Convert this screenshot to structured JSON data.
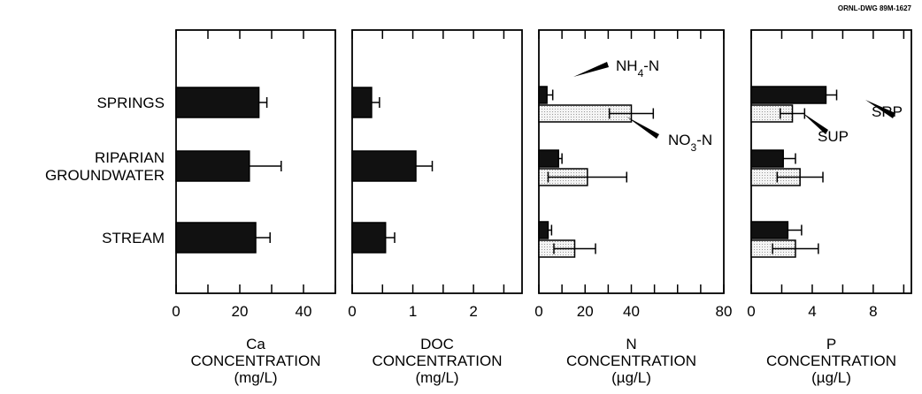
{
  "drawing_id": "ORNL-DWG 89M-1627",
  "categories": [
    "SPRINGS",
    "RIPARIAN\nGROUNDWATER",
    "STREAM"
  ],
  "colors": {
    "solid": "#111111",
    "stippled": "#f2f2f2",
    "frame": "#000000"
  },
  "chart_data": [
    {
      "type": "bar",
      "orientation": "horizontal",
      "categories": [
        "SPRINGS",
        "RIPARIAN GROUNDWATER",
        "STREAM"
      ],
      "xlim": [
        0,
        50
      ],
      "xticks": [
        0,
        20,
        40
      ],
      "xlabel": [
        "Ca",
        "CONCENTRATION",
        "(mg/L)"
      ],
      "series": [
        {
          "style": "solid",
          "values": [
            26,
            23,
            25
          ],
          "errors": [
            2.5,
            10,
            4.5
          ]
        }
      ]
    },
    {
      "type": "bar",
      "orientation": "horizontal",
      "categories": [
        "SPRINGS",
        "RIPARIAN GROUNDWATER",
        "STREAM"
      ],
      "xlim": [
        0,
        2.8
      ],
      "xticks": [
        0,
        1,
        2
      ],
      "xlabel": [
        "DOC",
        "CONCENTRATION",
        "(mg/L)"
      ],
      "series": [
        {
          "style": "solid",
          "values": [
            0.32,
            1.05,
            0.55
          ],
          "errors": [
            0.13,
            0.27,
            0.15
          ]
        }
      ]
    },
    {
      "type": "bar",
      "orientation": "horizontal",
      "categories": [
        "SPRINGS",
        "RIPARIAN GROUNDWATER",
        "STREAM"
      ],
      "xlim": [
        0,
        80
      ],
      "xticks": [
        0,
        20,
        40,
        80
      ],
      "xlabel": [
        "N",
        "CONCENTRATION",
        "(µg/L)"
      ],
      "series": [
        {
          "name": "NH4-N",
          "style": "solid",
          "values": [
            3.5,
            8.5,
            4
          ],
          "errors": [
            2.5,
            1.5,
            1.5
          ]
        },
        {
          "name": "NO3-N",
          "style": "stippled",
          "values": [
            40,
            21,
            15.5
          ],
          "errors": [
            9.5,
            17,
            9
          ]
        }
      ],
      "annotations": [
        {
          "base": "NH",
          "sub": "4",
          "suffix": "-N"
        },
        {
          "base": "NO",
          "sub": "3",
          "suffix": "-N"
        }
      ]
    },
    {
      "type": "bar",
      "orientation": "horizontal",
      "categories": [
        "SPRINGS",
        "RIPARIAN GROUNDWATER",
        "STREAM"
      ],
      "xlim": [
        0,
        10.5
      ],
      "xticks": [
        0,
        4,
        8
      ],
      "xlabel": [
        "P",
        "CONCENTRATION",
        "(µg/L)"
      ],
      "series": [
        {
          "name": "SRP",
          "style": "solid",
          "values": [
            4.9,
            2.1,
            2.4
          ],
          "errors": [
            0.7,
            0.8,
            0.9
          ]
        },
        {
          "name": "SUP",
          "style": "stippled",
          "values": [
            2.7,
            3.2,
            2.9
          ],
          "errors": [
            0.8,
            1.5,
            1.5
          ]
        }
      ],
      "annotations": [
        {
          "text": "SRP"
        },
        {
          "text": "SUP"
        }
      ]
    }
  ]
}
